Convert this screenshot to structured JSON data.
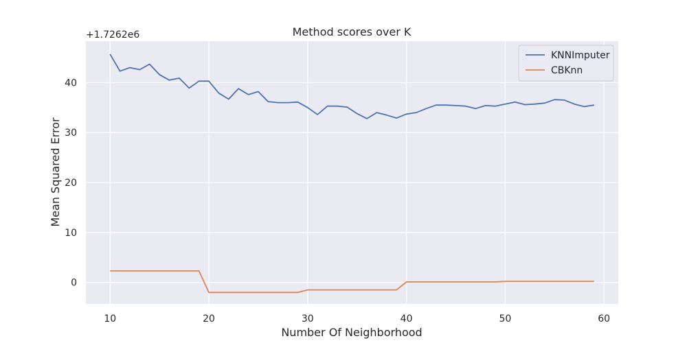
{
  "chart_data": {
    "type": "line",
    "title": "Method scores over K",
    "xlabel": "Number Of Neighborhood",
    "ylabel": "Mean Squared Error",
    "offset_text": "+1.7262e6",
    "xlim": [
      7.55,
      61.45
    ],
    "ylim": [
      -4.3,
      48.3
    ],
    "xticks": [
      10,
      20,
      30,
      40,
      50,
      60
    ],
    "yticks": [
      0,
      10,
      20,
      30,
      40
    ],
    "grid": true,
    "legend_position": "top-right",
    "x": [
      10,
      11,
      12,
      13,
      14,
      15,
      16,
      17,
      18,
      19,
      20,
      21,
      22,
      23,
      24,
      25,
      26,
      27,
      28,
      29,
      30,
      31,
      32,
      33,
      34,
      35,
      36,
      37,
      38,
      39,
      40,
      41,
      42,
      43,
      44,
      45,
      46,
      47,
      48,
      49,
      50,
      51,
      52,
      53,
      54,
      55,
      56,
      57,
      58,
      59
    ],
    "series": [
      {
        "name": "KNNImputer",
        "color": "#4c72b0",
        "values": [
          45.7,
          42.3,
          43.0,
          42.6,
          43.7,
          41.6,
          40.5,
          40.9,
          38.9,
          40.3,
          40.3,
          37.9,
          36.7,
          38.8,
          37.6,
          38.2,
          36.2,
          36.0,
          36.0,
          36.1,
          35.0,
          33.6,
          35.3,
          35.3,
          35.1,
          33.8,
          32.8,
          34.0,
          33.5,
          32.9,
          33.7,
          34.0,
          34.8,
          35.5,
          35.5,
          35.4,
          35.3,
          34.8,
          35.4,
          35.3,
          35.7,
          36.1,
          35.6,
          35.7,
          35.9,
          36.6,
          36.5,
          35.7,
          35.2,
          35.5
        ]
      },
      {
        "name": "CBKnn",
        "color": "#dd8452",
        "values": [
          2.3,
          2.3,
          2.3,
          2.3,
          2.3,
          2.3,
          2.3,
          2.3,
          2.3,
          2.3,
          -2.0,
          -2.0,
          -2.0,
          -2.0,
          -2.0,
          -2.0,
          -2.0,
          -2.0,
          -2.0,
          -2.0,
          -1.5,
          -1.5,
          -1.5,
          -1.5,
          -1.5,
          -1.5,
          -1.5,
          -1.5,
          -1.5,
          -1.5,
          0.1,
          0.1,
          0.1,
          0.1,
          0.1,
          0.1,
          0.1,
          0.1,
          0.1,
          0.1,
          0.2,
          0.2,
          0.2,
          0.2,
          0.2,
          0.2,
          0.2,
          0.2,
          0.2,
          0.2
        ]
      }
    ]
  }
}
